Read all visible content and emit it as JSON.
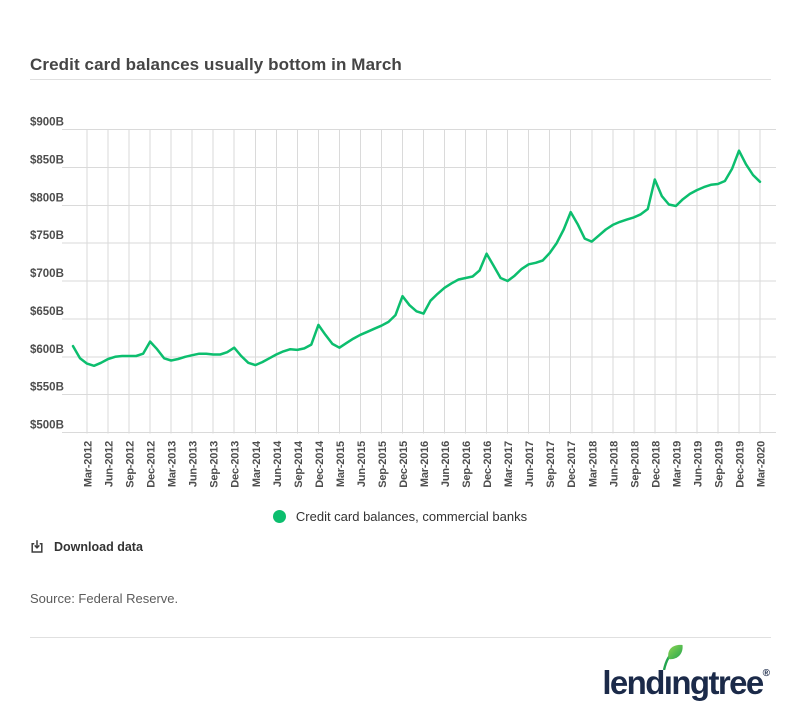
{
  "page": {
    "title": "Credit card balances usually bottom in March"
  },
  "chart": {
    "y_ticks": [
      "$900B",
      "$850B",
      "$800B",
      "$750B",
      "$700B",
      "$650B",
      "$600B",
      "$550B",
      "$500B"
    ],
    "legend": {
      "label": "Credit card balances, commercial banks"
    },
    "download_label": "Download data",
    "source": "Source: Federal Reserve."
  },
  "colors": {
    "line_green": "#0cbe6e",
    "grid_gray": "#dadada",
    "navy": "#1b2a49",
    "leaf_light": "#8fd651",
    "leaf_dark": "#23a550"
  },
  "footer": {
    "logo_text_lend": "lend",
    "logo_text_i": "ı",
    "logo_text_ngtree": "ngtree",
    "logo_reg": "®"
  },
  "chart_data": {
    "type": "line",
    "title": "Credit card balances usually bottom in March",
    "unit": "USD billions",
    "ylim": [
      500,
      900
    ],
    "y_tick_step": 50,
    "grid": "both",
    "legend_position": "bottom-center",
    "x": [
      "Jan-2012",
      "Feb-2012",
      "Mar-2012",
      "Apr-2012",
      "May-2012",
      "Jun-2012",
      "Jul-2012",
      "Aug-2012",
      "Sep-2012",
      "Oct-2012",
      "Nov-2012",
      "Dec-2012",
      "Jan-2013",
      "Feb-2013",
      "Mar-2013",
      "Apr-2013",
      "May-2013",
      "Jun-2013",
      "Jul-2013",
      "Aug-2013",
      "Sep-2013",
      "Oct-2013",
      "Nov-2013",
      "Dec-2013",
      "Jan-2014",
      "Feb-2014",
      "Mar-2014",
      "Apr-2014",
      "May-2014",
      "Jun-2014",
      "Jul-2014",
      "Aug-2014",
      "Sep-2014",
      "Oct-2014",
      "Nov-2014",
      "Dec-2014",
      "Jan-2015",
      "Feb-2015",
      "Mar-2015",
      "Apr-2015",
      "May-2015",
      "Jun-2015",
      "Jul-2015",
      "Aug-2015",
      "Sep-2015",
      "Oct-2015",
      "Nov-2015",
      "Dec-2015",
      "Jan-2016",
      "Feb-2016",
      "Mar-2016",
      "Apr-2016",
      "May-2016",
      "Jun-2016",
      "Jul-2016",
      "Aug-2016",
      "Sep-2016",
      "Oct-2016",
      "Nov-2016",
      "Dec-2016",
      "Jan-2017",
      "Feb-2017",
      "Mar-2017",
      "Apr-2017",
      "May-2017",
      "Jun-2017",
      "Jul-2017",
      "Aug-2017",
      "Sep-2017",
      "Oct-2017",
      "Nov-2017",
      "Dec-2017",
      "Jan-2018",
      "Feb-2018",
      "Mar-2018",
      "Apr-2018",
      "May-2018",
      "Jun-2018",
      "Jul-2018",
      "Aug-2018",
      "Sep-2018",
      "Oct-2018",
      "Nov-2018",
      "Dec-2018",
      "Jan-2019",
      "Feb-2019",
      "Mar-2019",
      "Apr-2019",
      "May-2019",
      "Jun-2019",
      "Jul-2019",
      "Aug-2019",
      "Sep-2019",
      "Oct-2019",
      "Nov-2019",
      "Dec-2019",
      "Jan-2020",
      "Feb-2020",
      "Mar-2020"
    ],
    "x_tick_labels": [
      "Mar-2012",
      "Jun-2012",
      "Sep-2012",
      "Dec-2012",
      "Mar-2013",
      "Jun-2013",
      "Sep-2013",
      "Dec-2013",
      "Mar-2014",
      "Jun-2014",
      "Sep-2014",
      "Dec-2014",
      "Mar-2015",
      "Jun-2015",
      "Sep-2015",
      "Dec-2015",
      "Mar-2016",
      "Jun-2016",
      "Sep-2016",
      "Dec-2016",
      "Mar-2017",
      "Jun-2017",
      "Sep-2017",
      "Dec-2017",
      "Mar-2018",
      "Jun-2018",
      "Sep-2018",
      "Dec-2018",
      "Mar-2019",
      "Jun-2019",
      "Sep-2019",
      "Dec-2019",
      "Mar-2020"
    ],
    "series": [
      {
        "name": "Credit card balances, commercial banks",
        "color": "#0cbe6e",
        "values": [
          614,
          598,
          591,
          588,
          592,
          597,
          600,
          601,
          601,
          601,
          604,
          620,
          610,
          598,
          595,
          597,
          600,
          602,
          604,
          604,
          603,
          603,
          606,
          612,
          601,
          592,
          589,
          593,
          598,
          603,
          607,
          610,
          609,
          611,
          616,
          642,
          629,
          617,
          612,
          618,
          624,
          629,
          633,
          637,
          641,
          646,
          655,
          680,
          668,
          660,
          657,
          674,
          683,
          691,
          697,
          702,
          704,
          706,
          714,
          736,
          720,
          704,
          700,
          707,
          716,
          722,
          724,
          727,
          737,
          750,
          768,
          791,
          775,
          756,
          752,
          760,
          768,
          774,
          778,
          781,
          784,
          788,
          795,
          834,
          812,
          801,
          799,
          808,
          815,
          820,
          824,
          827,
          828,
          832,
          848,
          872,
          854,
          840,
          831
        ]
      }
    ]
  }
}
